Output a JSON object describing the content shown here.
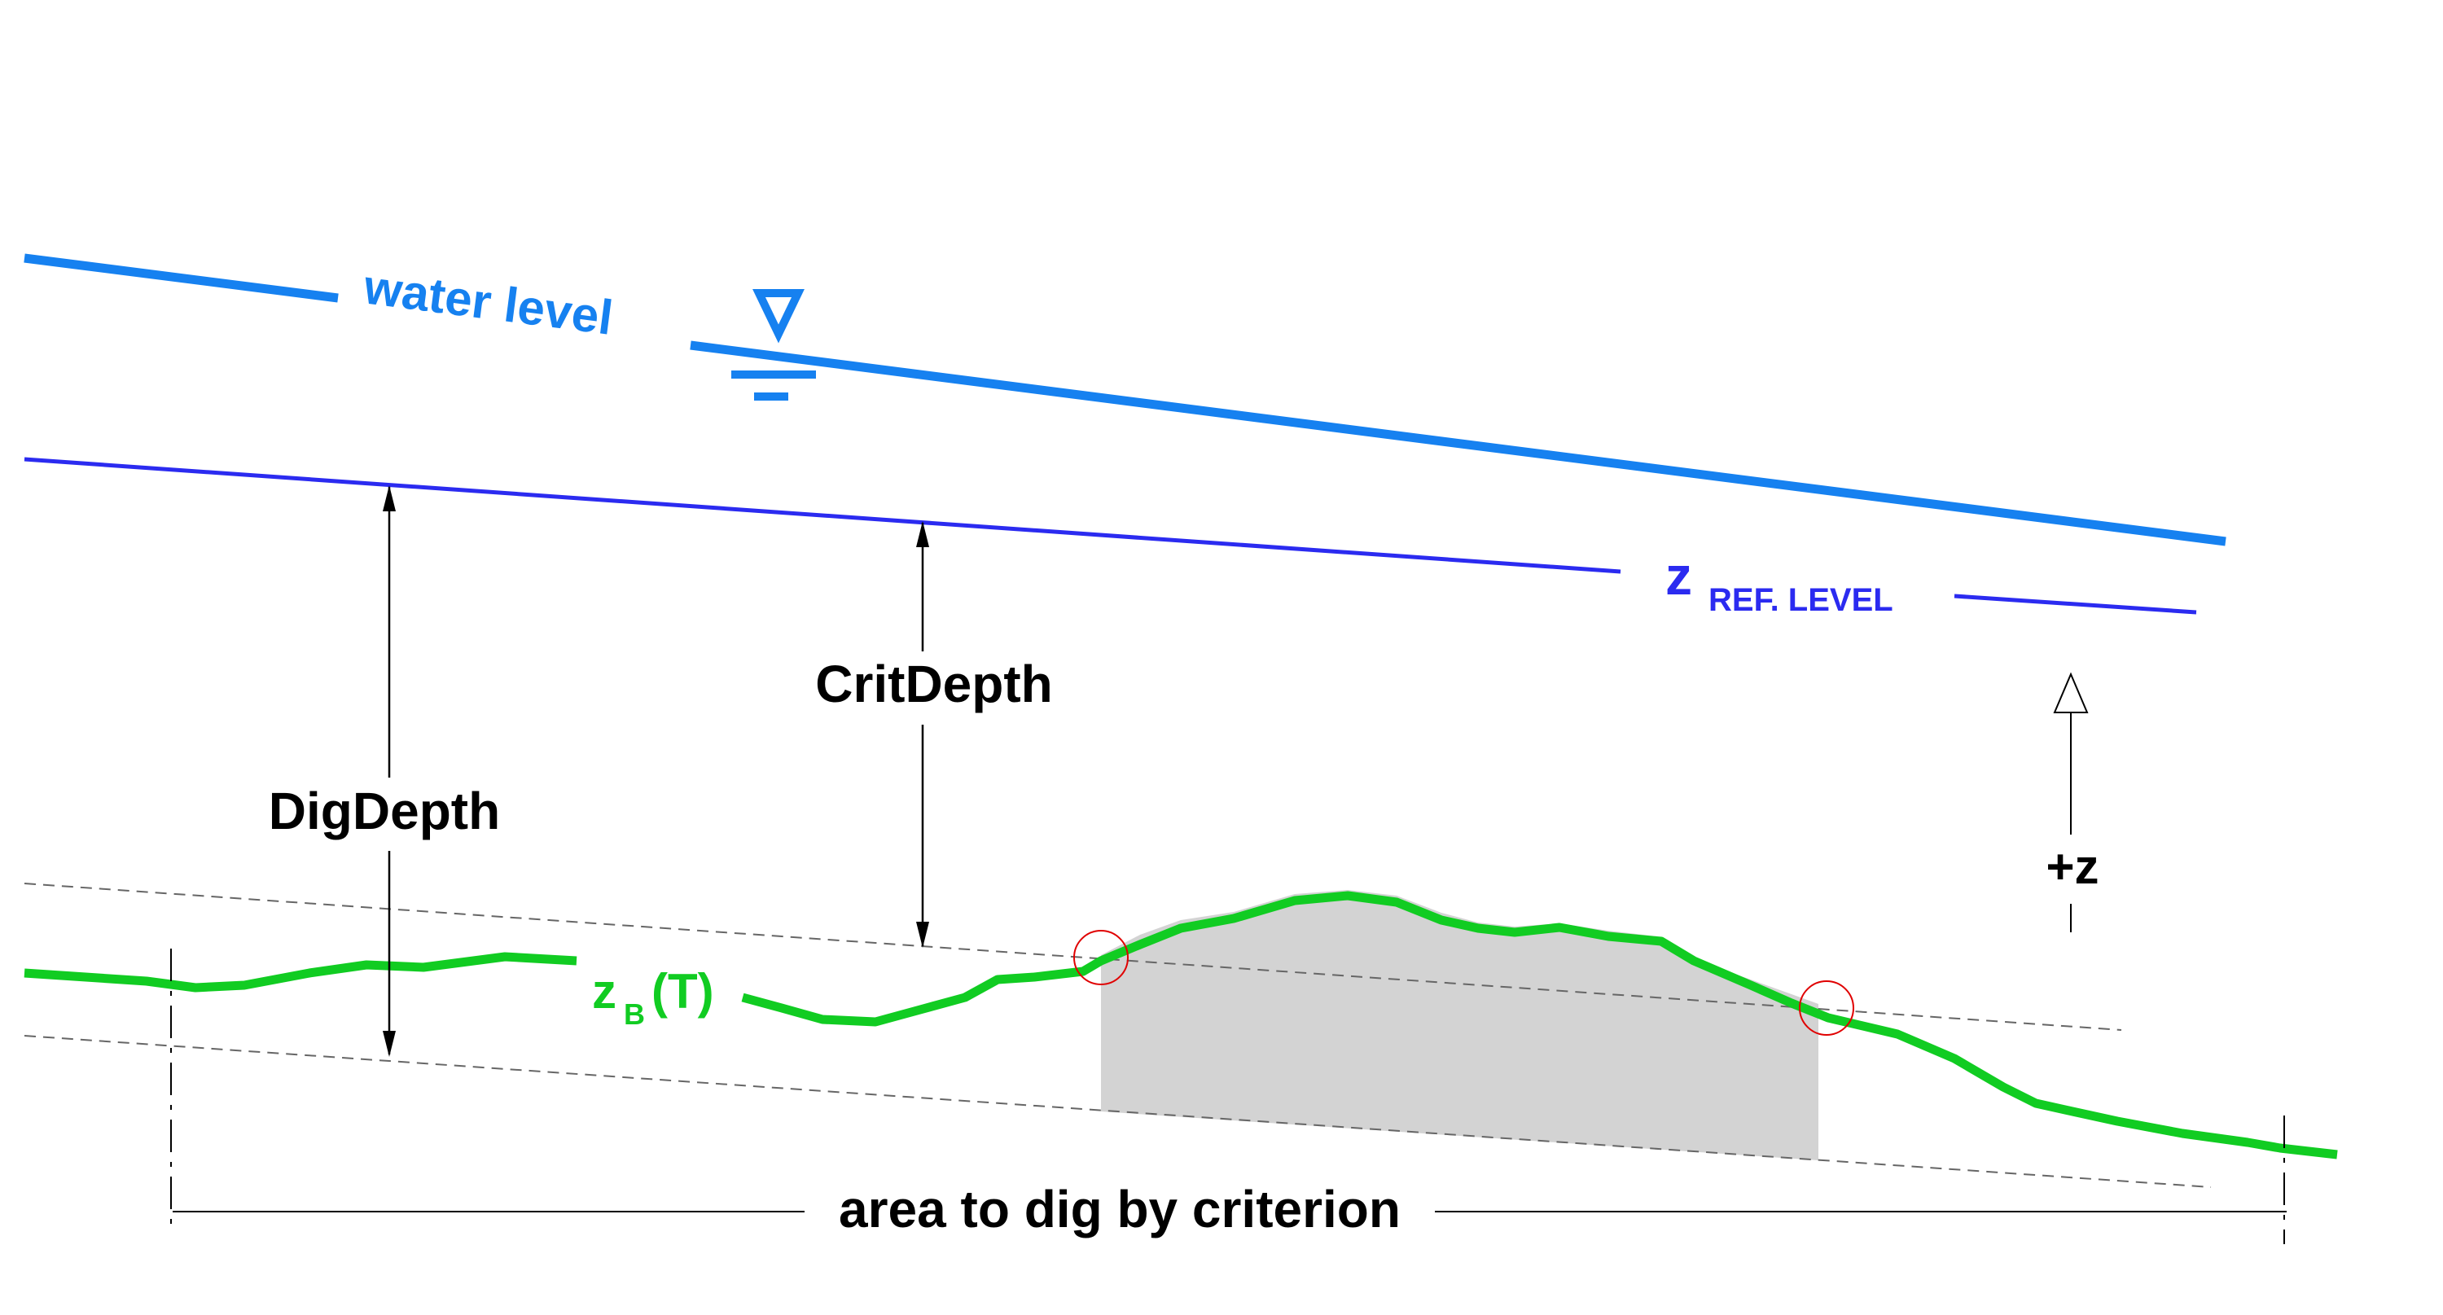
{
  "colors": {
    "water_level": "#1681f0",
    "reference_level": "#2b2bf0",
    "terrain": "#11cc22",
    "dig_area": "#d3d3d3",
    "dimension": "#000000",
    "intersection_marker": "#e00000",
    "auxiliary_line": "#666666"
  },
  "labels": {
    "water_level": "water level",
    "reference_level_symbol": "z",
    "reference_level_subscript": "REF. LEVEL",
    "crit_depth": "CritDepth",
    "dig_depth": "DigDepth",
    "z_axis": "+z",
    "terrain_symbol": "z",
    "terrain_subscript": "B",
    "terrain_argument": "(T)",
    "dig_area": "area to dig by criterion"
  },
  "icons": {
    "water_level_marker": "water-surface-triangle-icon",
    "z_direction": "up-arrow-icon"
  }
}
